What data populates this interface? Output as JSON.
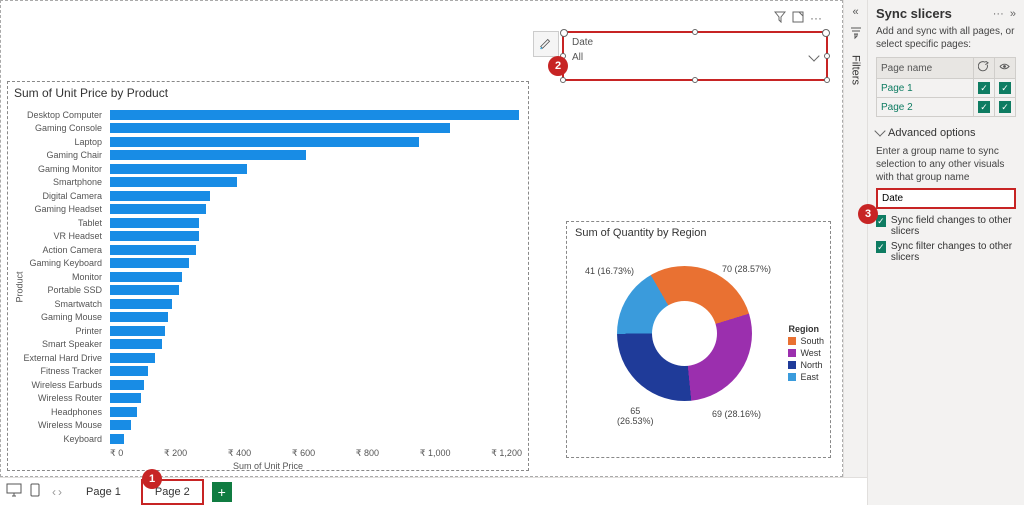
{
  "bar_chart": {
    "title": "Sum of Unit Price by Product",
    "ylabel": "Product",
    "xlabel": "Sum of Unit Price",
    "bar_color": "#188ce5",
    "xmax": 1200,
    "xticks": [
      "₹ 0",
      "₹ 200",
      "₹ 400",
      "₹ 600",
      "₹ 800",
      "₹ 1,000",
      "₹ 1,200"
    ],
    "items": [
      {
        "label": "Desktop Computer",
        "value": 1190
      },
      {
        "label": "Gaming Console",
        "value": 990
      },
      {
        "label": "Laptop",
        "value": 900
      },
      {
        "label": "Gaming Chair",
        "value": 570
      },
      {
        "label": "Gaming Monitor",
        "value": 400
      },
      {
        "label": "Smartphone",
        "value": 370
      },
      {
        "label": "Digital Camera",
        "value": 290
      },
      {
        "label": "Gaming Headset",
        "value": 280
      },
      {
        "label": "Tablet",
        "value": 260
      },
      {
        "label": "VR Headset",
        "value": 260
      },
      {
        "label": "Action Camera",
        "value": 250
      },
      {
        "label": "Gaming Keyboard",
        "value": 230
      },
      {
        "label": "Monitor",
        "value": 210
      },
      {
        "label": "Portable SSD",
        "value": 200
      },
      {
        "label": "Smartwatch",
        "value": 180
      },
      {
        "label": "Gaming Mouse",
        "value": 170
      },
      {
        "label": "Printer",
        "value": 160
      },
      {
        "label": "Smart Speaker",
        "value": 150
      },
      {
        "label": "External Hard Drive",
        "value": 130
      },
      {
        "label": "Fitness Tracker",
        "value": 110
      },
      {
        "label": "Wireless Earbuds",
        "value": 100
      },
      {
        "label": "Wireless Router",
        "value": 90
      },
      {
        "label": "Headphones",
        "value": 80
      },
      {
        "label": "Wireless Mouse",
        "value": 60
      },
      {
        "label": "Keyboard",
        "value": 40
      }
    ]
  },
  "slicer": {
    "field": "Date",
    "value": "All"
  },
  "donut": {
    "title": "Sum of Quantity by Region",
    "legend_title": "Region",
    "slices": [
      {
        "label": "South",
        "value": 70,
        "pct": "28.57%",
        "color": "#e97132"
      },
      {
        "label": "West",
        "value": 69,
        "pct": "28.16%",
        "color": "#9b2fae"
      },
      {
        "label": "North",
        "value": 65,
        "pct": "26.53%",
        "color": "#1f3b99"
      },
      {
        "label": "East",
        "value": 41,
        "pct": "16.73%",
        "color": "#3a9bdc"
      }
    ]
  },
  "filters": {
    "label": "Filters"
  },
  "sync": {
    "title": "Sync slicers",
    "desc": "Add and sync with all pages, or select specific pages:",
    "page_col": "Page name",
    "pages": [
      "Page 1",
      "Page 2"
    ],
    "adv": "Advanced options",
    "adv_text": "Enter a group name to sync selection to any other visuals with that group name",
    "group_value": "Date",
    "check1": "Sync field changes to other slicers",
    "check2": "Sync filter changes to other slicers"
  },
  "tabs": {
    "page1": "Page 1",
    "page2": "Page 2"
  },
  "callouts": {
    "c1": "1",
    "c2": "2",
    "c3": "3"
  }
}
